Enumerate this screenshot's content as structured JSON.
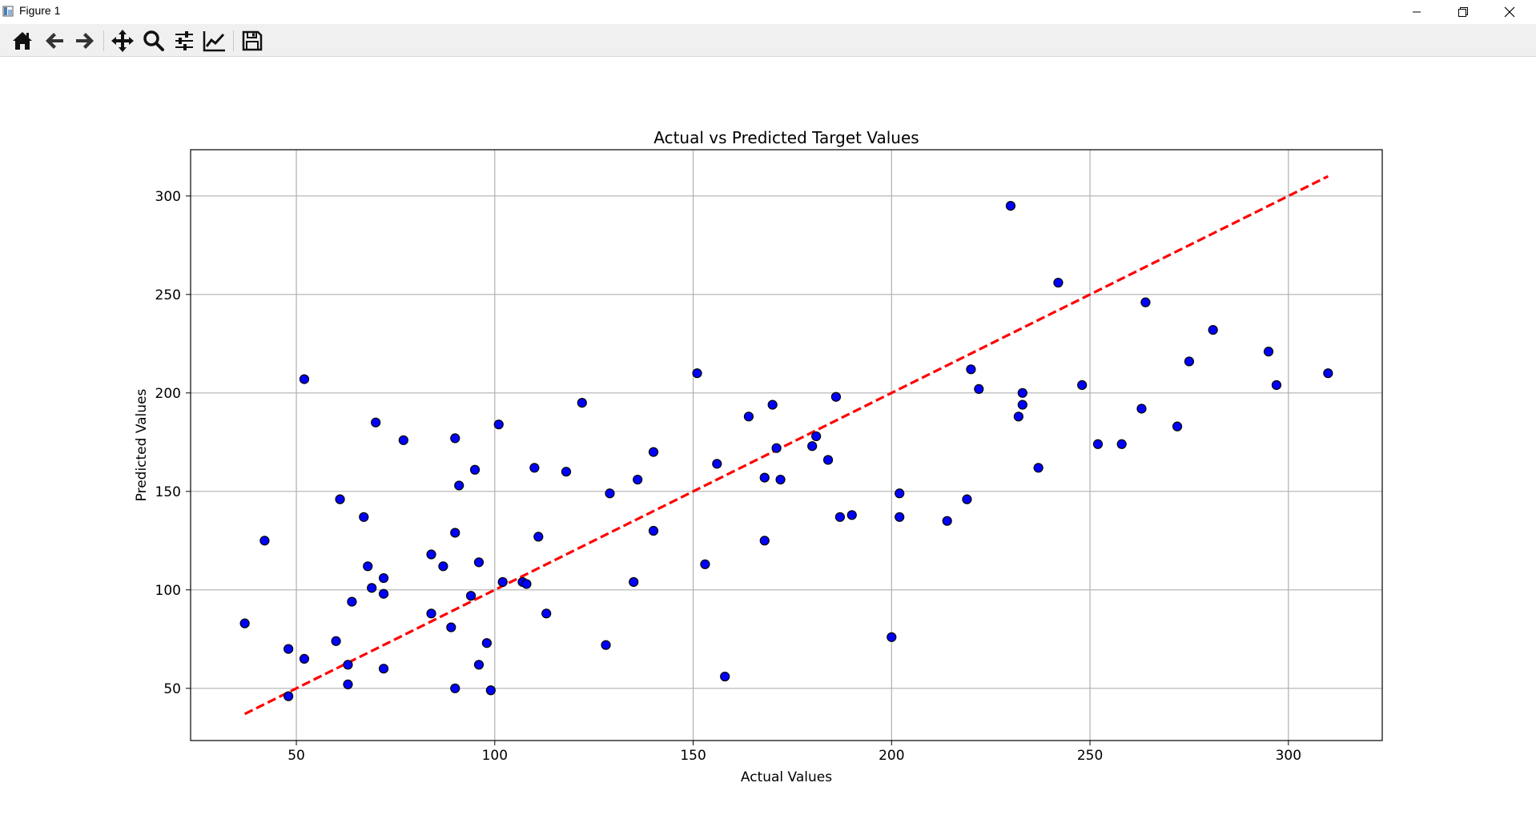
{
  "window": {
    "title": "Figure 1"
  },
  "toolbar": {
    "tools": [
      "home-icon",
      "back-arrow-icon",
      "forward-arrow-icon",
      "pan-icon",
      "zoom-icon",
      "configure-subplots-icon",
      "edit-axis-icon",
      "save-icon"
    ]
  },
  "chart_data": {
    "type": "scatter",
    "title": "Actual vs Predicted Target Values",
    "xlabel": "Actual Values",
    "ylabel": "Predicted Values",
    "xlim": [
      23.35,
      323.65
    ],
    "ylim": [
      23.5,
      323.5
    ],
    "xticks": [
      50,
      100,
      150,
      200,
      250,
      300
    ],
    "yticks": [
      50,
      100,
      150,
      200,
      250,
      300
    ],
    "grid": true,
    "marker_color": "#0000ff",
    "marker_edge": "#000000",
    "reference_line": {
      "x": [
        37,
        310
      ],
      "y": [
        37,
        310
      ],
      "color": "#ff0000",
      "style": "dashed"
    },
    "points": [
      [
        37,
        83
      ],
      [
        42,
        125
      ],
      [
        48,
        70
      ],
      [
        48,
        46
      ],
      [
        52,
        207
      ],
      [
        52,
        65
      ],
      [
        60,
        74
      ],
      [
        61,
        146
      ],
      [
        63,
        62
      ],
      [
        63,
        52
      ],
      [
        64,
        94
      ],
      [
        67,
        137
      ],
      [
        68,
        112
      ],
      [
        69,
        101
      ],
      [
        70,
        185
      ],
      [
        72,
        106
      ],
      [
        72,
        98
      ],
      [
        72,
        60
      ],
      [
        77,
        176
      ],
      [
        84,
        118
      ],
      [
        84,
        88
      ],
      [
        87,
        112
      ],
      [
        89,
        81
      ],
      [
        90,
        177
      ],
      [
        90,
        129
      ],
      [
        90,
        50
      ],
      [
        91,
        153
      ],
      [
        94,
        97
      ],
      [
        95,
        161
      ],
      [
        96,
        114
      ],
      [
        96,
        62
      ],
      [
        98,
        73
      ],
      [
        99,
        49
      ],
      [
        101,
        184
      ],
      [
        102,
        104
      ],
      [
        107,
        104
      ],
      [
        108,
        103
      ],
      [
        110,
        162
      ],
      [
        111,
        127
      ],
      [
        113,
        88
      ],
      [
        118,
        160
      ],
      [
        122,
        195
      ],
      [
        128,
        72
      ],
      [
        129,
        149
      ],
      [
        135,
        104
      ],
      [
        136,
        156
      ],
      [
        140,
        170
      ],
      [
        140,
        130
      ],
      [
        151,
        210
      ],
      [
        153,
        113
      ],
      [
        156,
        164
      ],
      [
        158,
        56
      ],
      [
        164,
        188
      ],
      [
        168,
        157
      ],
      [
        168,
        125
      ],
      [
        170,
        194
      ],
      [
        171,
        172
      ],
      [
        172,
        156
      ],
      [
        180,
        173
      ],
      [
        181,
        178
      ],
      [
        184,
        166
      ],
      [
        186,
        198
      ],
      [
        187,
        137
      ],
      [
        190,
        138
      ],
      [
        200,
        76
      ],
      [
        202,
        149
      ],
      [
        202,
        137
      ],
      [
        214,
        135
      ],
      [
        219,
        146
      ],
      [
        220,
        212
      ],
      [
        222,
        202
      ],
      [
        230,
        295
      ],
      [
        232,
        188
      ],
      [
        233,
        200
      ],
      [
        233,
        194
      ],
      [
        237,
        162
      ],
      [
        242,
        256
      ],
      [
        248,
        204
      ],
      [
        252,
        174
      ],
      [
        258,
        174
      ],
      [
        263,
        192
      ],
      [
        264,
        246
      ],
      [
        272,
        183
      ],
      [
        275,
        216
      ],
      [
        281,
        232
      ],
      [
        295,
        221
      ],
      [
        297,
        204
      ],
      [
        310,
        210
      ]
    ]
  }
}
